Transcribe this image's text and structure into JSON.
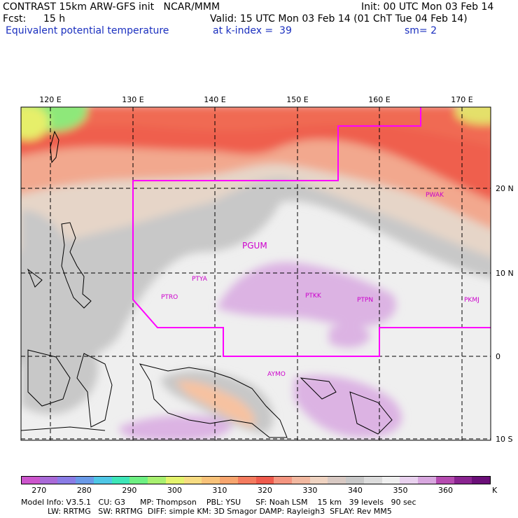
{
  "header": {
    "line1_left": "CONTRAST 15km ARW-GFS init   NCAR/MMM",
    "line1_right": "Init: 00 UTC Mon 03 Feb 14",
    "fcst_label": "Fcst:",
    "fcst_value": "15 h",
    "valid": "Valid: 15 UTC Mon 03 Feb 14 (01 ChT Tue 04 Feb 14)",
    "field": "Equivalent potential temperature",
    "level": "at k-index =  39",
    "smooth": "sm= 2"
  },
  "map": {
    "lon_labels": [
      "120 E",
      "130 E",
      "140 E",
      "150 E",
      "160 E",
      "170 E"
    ],
    "lat_labels": [
      "20 N",
      "10 N",
      "0",
      "10 S"
    ],
    "stations": [
      "PWAK",
      "PGUM",
      "PTYA",
      "PTRO",
      "PTKK",
      "PTPN",
      "PKMJ",
      "AYMO"
    ]
  },
  "colorbar": {
    "colors": [
      "#cc55cc",
      "#a96ad8",
      "#8a7ce6",
      "#6a9ae8",
      "#4fc7e6",
      "#3ee6b8",
      "#6ef083",
      "#a8f070",
      "#e4f36d",
      "#f7dc82",
      "#f8c279",
      "#f7a56e",
      "#f47b5e",
      "#ef5a4c",
      "#f49580",
      "#f2b8a0",
      "#efd3c1",
      "#d8c9c3",
      "#c8c8c8",
      "#dcdcdc",
      "#efefef",
      "#e9d2ef",
      "#d8a7df",
      "#b54bb0",
      "#8a2490",
      "#6b0f78"
    ],
    "tick_labels": [
      "270",
      "280",
      "290",
      "300",
      "310",
      "320",
      "330",
      "340",
      "350",
      "360",
      "K"
    ]
  },
  "model_info": {
    "line1": "Model Info: V3.5.1   CU: G3      MP: Thompson    PBL: YSU      SF: Noah LSM    15 km   39 levels   90 sec",
    "line2": "LW: RRTMG   SW: RRTMG  DIFF: simple KM: 3D Smagor DAMP: Rayleigh3  SFLAY: Rev MM5"
  },
  "colors": {
    "boundary": "#ff00ff",
    "station": "#cc00cc",
    "header_blue": "#1a2fbf"
  }
}
